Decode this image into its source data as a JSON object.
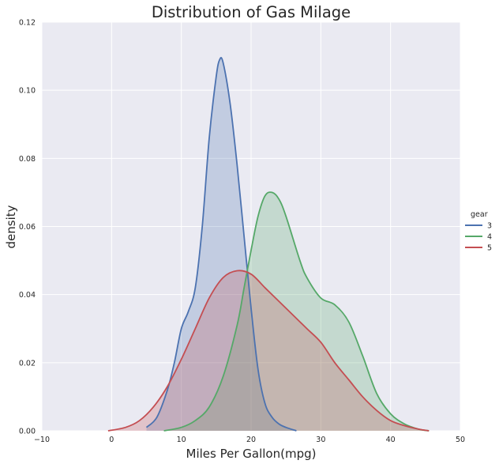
{
  "chart_data": {
    "type": "area",
    "title": "Distribution of Gas Milage",
    "xlabel": "Miles Per Gallon(mpg)",
    "ylabel": "density",
    "xlim": [
      -10,
      50
    ],
    "ylim": [
      0,
      0.12
    ],
    "xticks": [
      -10,
      0,
      10,
      20,
      30,
      40,
      50
    ],
    "yticks": [
      0.0,
      0.02,
      0.04,
      0.06,
      0.08,
      0.1,
      0.12
    ],
    "xtick_labels": [
      "−10",
      "0",
      "10",
      "20",
      "30",
      "40",
      "50"
    ],
    "ytick_labels": [
      "0.00",
      "0.02",
      "0.04",
      "0.06",
      "0.08",
      "0.10",
      "0.12"
    ],
    "grid": true,
    "legend": {
      "title": "gear",
      "placement": "center-right",
      "entries": [
        "3",
        "4",
        "5"
      ]
    },
    "series": [
      {
        "name": "3",
        "color": "#4c72b0",
        "fill": "rgba(76,114,176,0.25)",
        "x": [
          5.0,
          6.5,
          8.0,
          9.0,
          10.0,
          11.0,
          12.0,
          13.0,
          14.0,
          15.0,
          15.5,
          16.0,
          17.0,
          18.0,
          19.0,
          20.0,
          21.0,
          22.0,
          23.0,
          24.0,
          25.0,
          26.5
        ],
        "y": [
          0.001,
          0.004,
          0.012,
          0.02,
          0.03,
          0.035,
          0.042,
          0.06,
          0.086,
          0.104,
          0.109,
          0.108,
          0.096,
          0.078,
          0.057,
          0.036,
          0.018,
          0.008,
          0.004,
          0.002,
          0.001,
          0.0
        ]
      },
      {
        "name": "4",
        "color": "#55a868",
        "fill": "rgba(85,168,104,0.25)",
        "x": [
          7.5,
          10.0,
          12.0,
          14.0,
          16.0,
          18.0,
          19.0,
          20.0,
          21.0,
          22.0,
          23.0,
          24.0,
          25.0,
          27.0,
          28.0,
          30.0,
          32.0,
          34.0,
          36.0,
          38.0,
          40.0,
          42.0,
          44.0,
          45.5
        ],
        "y": [
          0.0,
          0.001,
          0.003,
          0.007,
          0.016,
          0.031,
          0.042,
          0.053,
          0.063,
          0.069,
          0.07,
          0.068,
          0.063,
          0.05,
          0.045,
          0.039,
          0.037,
          0.032,
          0.022,
          0.011,
          0.005,
          0.002,
          0.0005,
          0.0
        ]
      },
      {
        "name": "5",
        "color": "#c44e52",
        "fill": "rgba(196,78,82,0.25)",
        "x": [
          -0.5,
          2.0,
          4.0,
          6.0,
          8.0,
          10.0,
          12.0,
          14.0,
          16.0,
          18.0,
          20.0,
          22.0,
          24.0,
          26.0,
          28.0,
          30.0,
          32.0,
          34.0,
          36.0,
          38.0,
          40.0,
          42.0,
          44.0,
          45.5
        ],
        "y": [
          0.0,
          0.001,
          0.003,
          0.007,
          0.013,
          0.021,
          0.03,
          0.039,
          0.045,
          0.047,
          0.046,
          0.042,
          0.038,
          0.034,
          0.03,
          0.026,
          0.02,
          0.015,
          0.01,
          0.006,
          0.003,
          0.0015,
          0.0005,
          0.0
        ]
      }
    ]
  }
}
